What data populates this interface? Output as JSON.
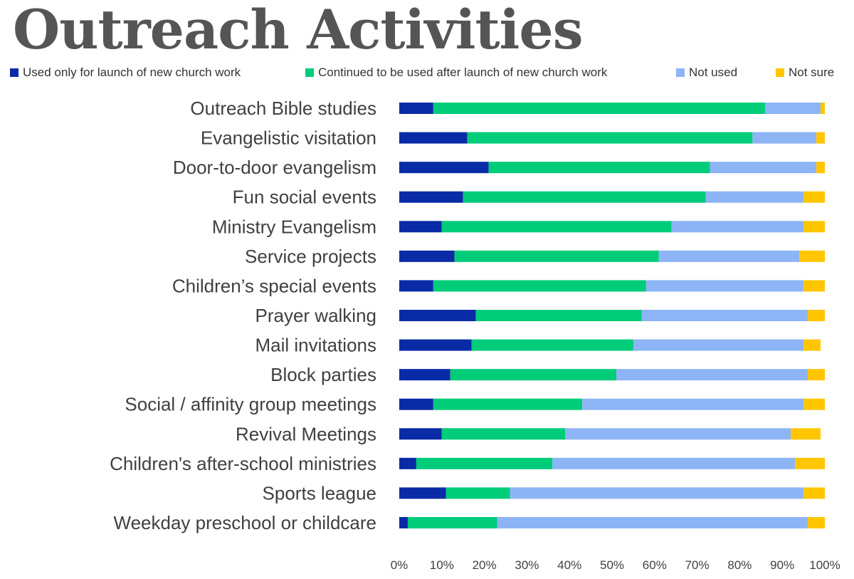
{
  "chart_data": {
    "type": "bar",
    "orientation": "horizontal",
    "stacked": true,
    "title": "Outreach Activities",
    "xlabel": "",
    "ylabel": "",
    "xlim": [
      0,
      100
    ],
    "x_ticks": [
      "0%",
      "10%",
      "20%",
      "30%",
      "40%",
      "50%",
      "60%",
      "70%",
      "80%",
      "90%",
      "100%"
    ],
    "grid": false,
    "legend_position": "top",
    "categories": [
      "Outreach Bible studies",
      "Evangelistic visitation",
      "Door-to-door evangelism",
      "Fun social events",
      "Ministry Evangelism",
      "Service projects",
      "Children’s special events",
      "Prayer walking",
      "Mail invitations",
      "Block parties",
      "Social / affinity group meetings",
      "Revival Meetings",
      "Children's after-school ministries",
      "Sports league",
      "Weekday preschool or childcare"
    ],
    "series": [
      {
        "name": "Used only for launch of new church work",
        "color": "#0A2BA6",
        "values": [
          8,
          16,
          21,
          15,
          10,
          13,
          8,
          18,
          17,
          12,
          8,
          10,
          4,
          11,
          2
        ]
      },
      {
        "name": "Continued to be used after launch of new church work",
        "color": "#00CC7A",
        "values": [
          78,
          67,
          52,
          57,
          54,
          48,
          50,
          39,
          38,
          39,
          35,
          29,
          32,
          15,
          21
        ]
      },
      {
        "name": "Not used",
        "color": "#8DB4F5",
        "values": [
          13,
          15,
          25,
          23,
          31,
          33,
          37,
          39,
          40,
          45,
          52,
          53,
          57,
          69,
          73
        ]
      },
      {
        "name": "Not sure",
        "color": "#FFC600",
        "values": [
          1,
          2,
          2,
          5,
          5,
          6,
          5,
          4,
          4,
          4,
          5,
          7,
          7,
          5,
          4
        ]
      }
    ]
  }
}
